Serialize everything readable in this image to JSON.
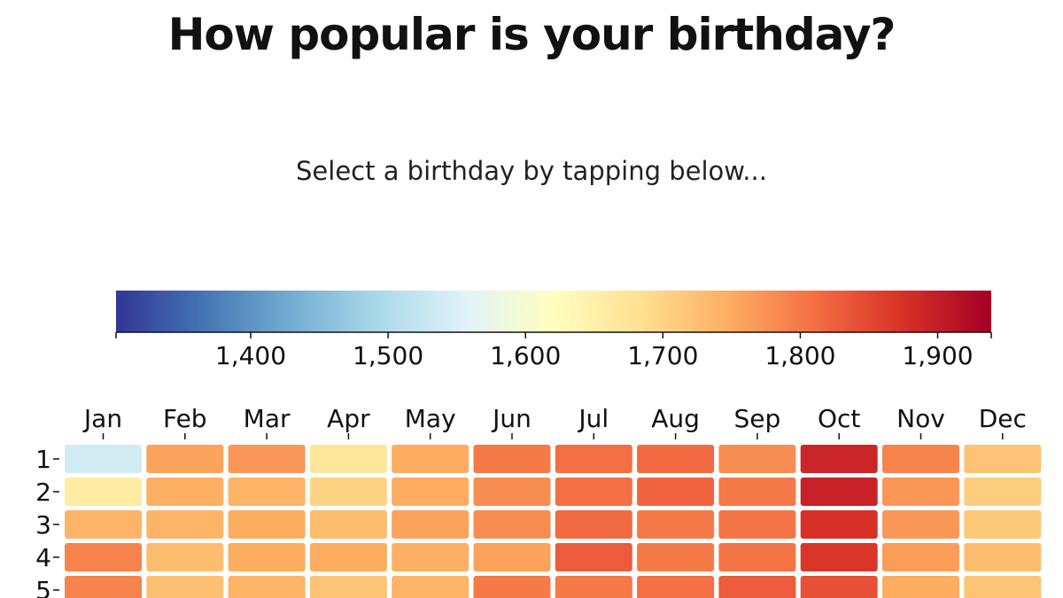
{
  "header": {
    "title": "How popular is your birthday?",
    "subtitle": "Select a birthday by tapping below..."
  },
  "chart_data": {
    "type": "heatmap",
    "title": "How popular is your birthday?",
    "colorscale": "RdYlBu (reversed)",
    "color_domain": [
      1302,
      1939
    ],
    "colorbar_ticks": [
      1400,
      1500,
      1600,
      1700,
      1800,
      1900
    ],
    "colorbar_tick_labels": [
      "1,400",
      "1,500",
      "1,600",
      "1,700",
      "1,800",
      "1,900"
    ],
    "months": [
      "Jan",
      "Feb",
      "Mar",
      "Apr",
      "May",
      "Jun",
      "Jul",
      "Aug",
      "Sep",
      "Oct",
      "Nov",
      "Dec"
    ],
    "days": [
      "1",
      "2",
      "3",
      "4",
      "5"
    ],
    "values": [
      [
        1540,
        1760,
        1770,
        1670,
        1750,
        1800,
        1810,
        1815,
        1780,
        1890,
        1790,
        1720
      ],
      [
        1660,
        1745,
        1740,
        1700,
        1750,
        1780,
        1810,
        1820,
        1800,
        1895,
        1770,
        1710
      ],
      [
        1740,
        1740,
        1750,
        1730,
        1760,
        1780,
        1815,
        1800,
        1805,
        1875,
        1770,
        1715
      ],
      [
        1790,
        1730,
        1750,
        1750,
        1745,
        1760,
        1830,
        1800,
        1805,
        1870,
        1765,
        1730
      ],
      [
        1790,
        1725,
        1740,
        1720,
        1740,
        1800,
        1800,
        1810,
        1830,
        1840,
        1750,
        1720
      ]
    ]
  }
}
